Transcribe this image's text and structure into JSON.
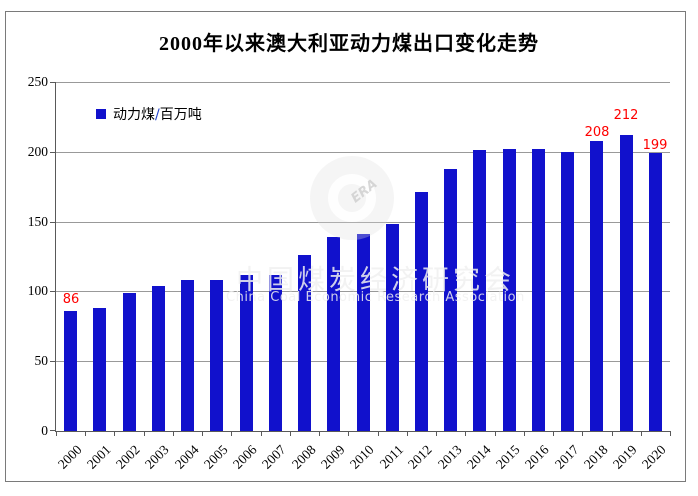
{
  "chart_data": {
    "type": "bar",
    "title": "2000年以来澳大利亚动力煤出口变化走势",
    "legend_parts": [
      "动力煤",
      "/",
      "百万吨"
    ],
    "legend_label": "动力煤/百万吨",
    "categories": [
      "2000",
      "2001",
      "2002",
      "2003",
      "2004",
      "2005",
      "2006",
      "2007",
      "2008",
      "2009",
      "2010",
      "2011",
      "2012",
      "2013",
      "2014",
      "2015",
      "2016",
      "2017",
      "2018",
      "2019",
      "2020"
    ],
    "values": [
      86,
      88,
      99,
      104,
      108,
      108,
      112,
      112,
      126,
      139,
      141,
      148,
      171,
      188,
      201,
      202,
      202,
      200,
      208,
      212,
      199
    ],
    "ylim": [
      0,
      250
    ],
    "y_ticks": [
      0,
      50,
      100,
      150,
      200,
      250
    ],
    "grid": true,
    "legend_position": "top-left-inside",
    "xlabel": "",
    "ylabel": "",
    "annotations": [
      {
        "category": "2000",
        "label": "86"
      },
      {
        "category": "2018",
        "label": "208"
      },
      {
        "category": "2019",
        "label": "212"
      },
      {
        "category": "2020",
        "label": "199"
      }
    ],
    "bar_color": "#1111cc",
    "annotation_color": "#ff0000",
    "gridline_color": "#999999",
    "axis_color": "#595959"
  },
  "watermark": {
    "logo_text": "ERA",
    "cn_text": "中国煤炭经济研究会",
    "en_text": "China Coal Economic Research Association"
  }
}
